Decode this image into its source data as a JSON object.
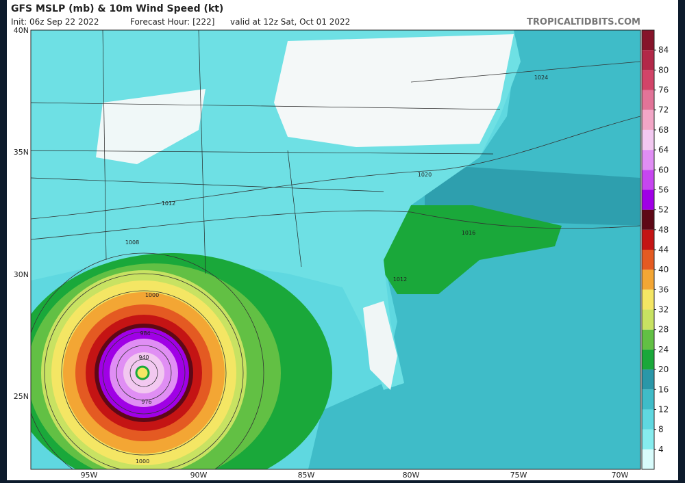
{
  "header": {
    "title": "GFS MSLP (mb) & 10m Wind Speed (kt)",
    "init": "Init: 06z Sep 22 2022",
    "forecast_hour": "Forecast Hour: [222]",
    "valid": "valid at 12z Sat, Oct 01 2022",
    "source": "TROPICALTIDBITS.COM"
  },
  "map": {
    "lat_labels": [
      "40N",
      "35N",
      "30N",
      "25N"
    ],
    "lon_labels": [
      "95W",
      "90W",
      "85W",
      "80W",
      "75W",
      "70W"
    ],
    "isobar_labels": [
      "1024",
      "1020",
      "1016",
      "1012",
      "1012",
      "1008",
      "1000",
      "1000",
      "984",
      "976",
      "940"
    ]
  },
  "colorbar": {
    "range": [
      0,
      88
    ],
    "ticks": [
      4,
      8,
      12,
      16,
      20,
      24,
      28,
      32,
      36,
      40,
      44,
      48,
      52,
      56,
      60,
      64,
      68,
      72,
      76,
      80,
      84
    ],
    "colors": [
      "#d8fbfb",
      "#86ecee",
      "#5fd8e0",
      "#3fbcc8",
      "#2a97a8",
      "#1aa83a",
      "#62c044",
      "#c8e262",
      "#f4e664",
      "#f3a634",
      "#e45a22",
      "#c41414",
      "#5e0816",
      "#a000e6",
      "#c646f0",
      "#e08ef4",
      "#f2c8f0",
      "#f2a6c6",
      "#e27498",
      "#d24468",
      "#b22848",
      "#86142a"
    ]
  }
}
